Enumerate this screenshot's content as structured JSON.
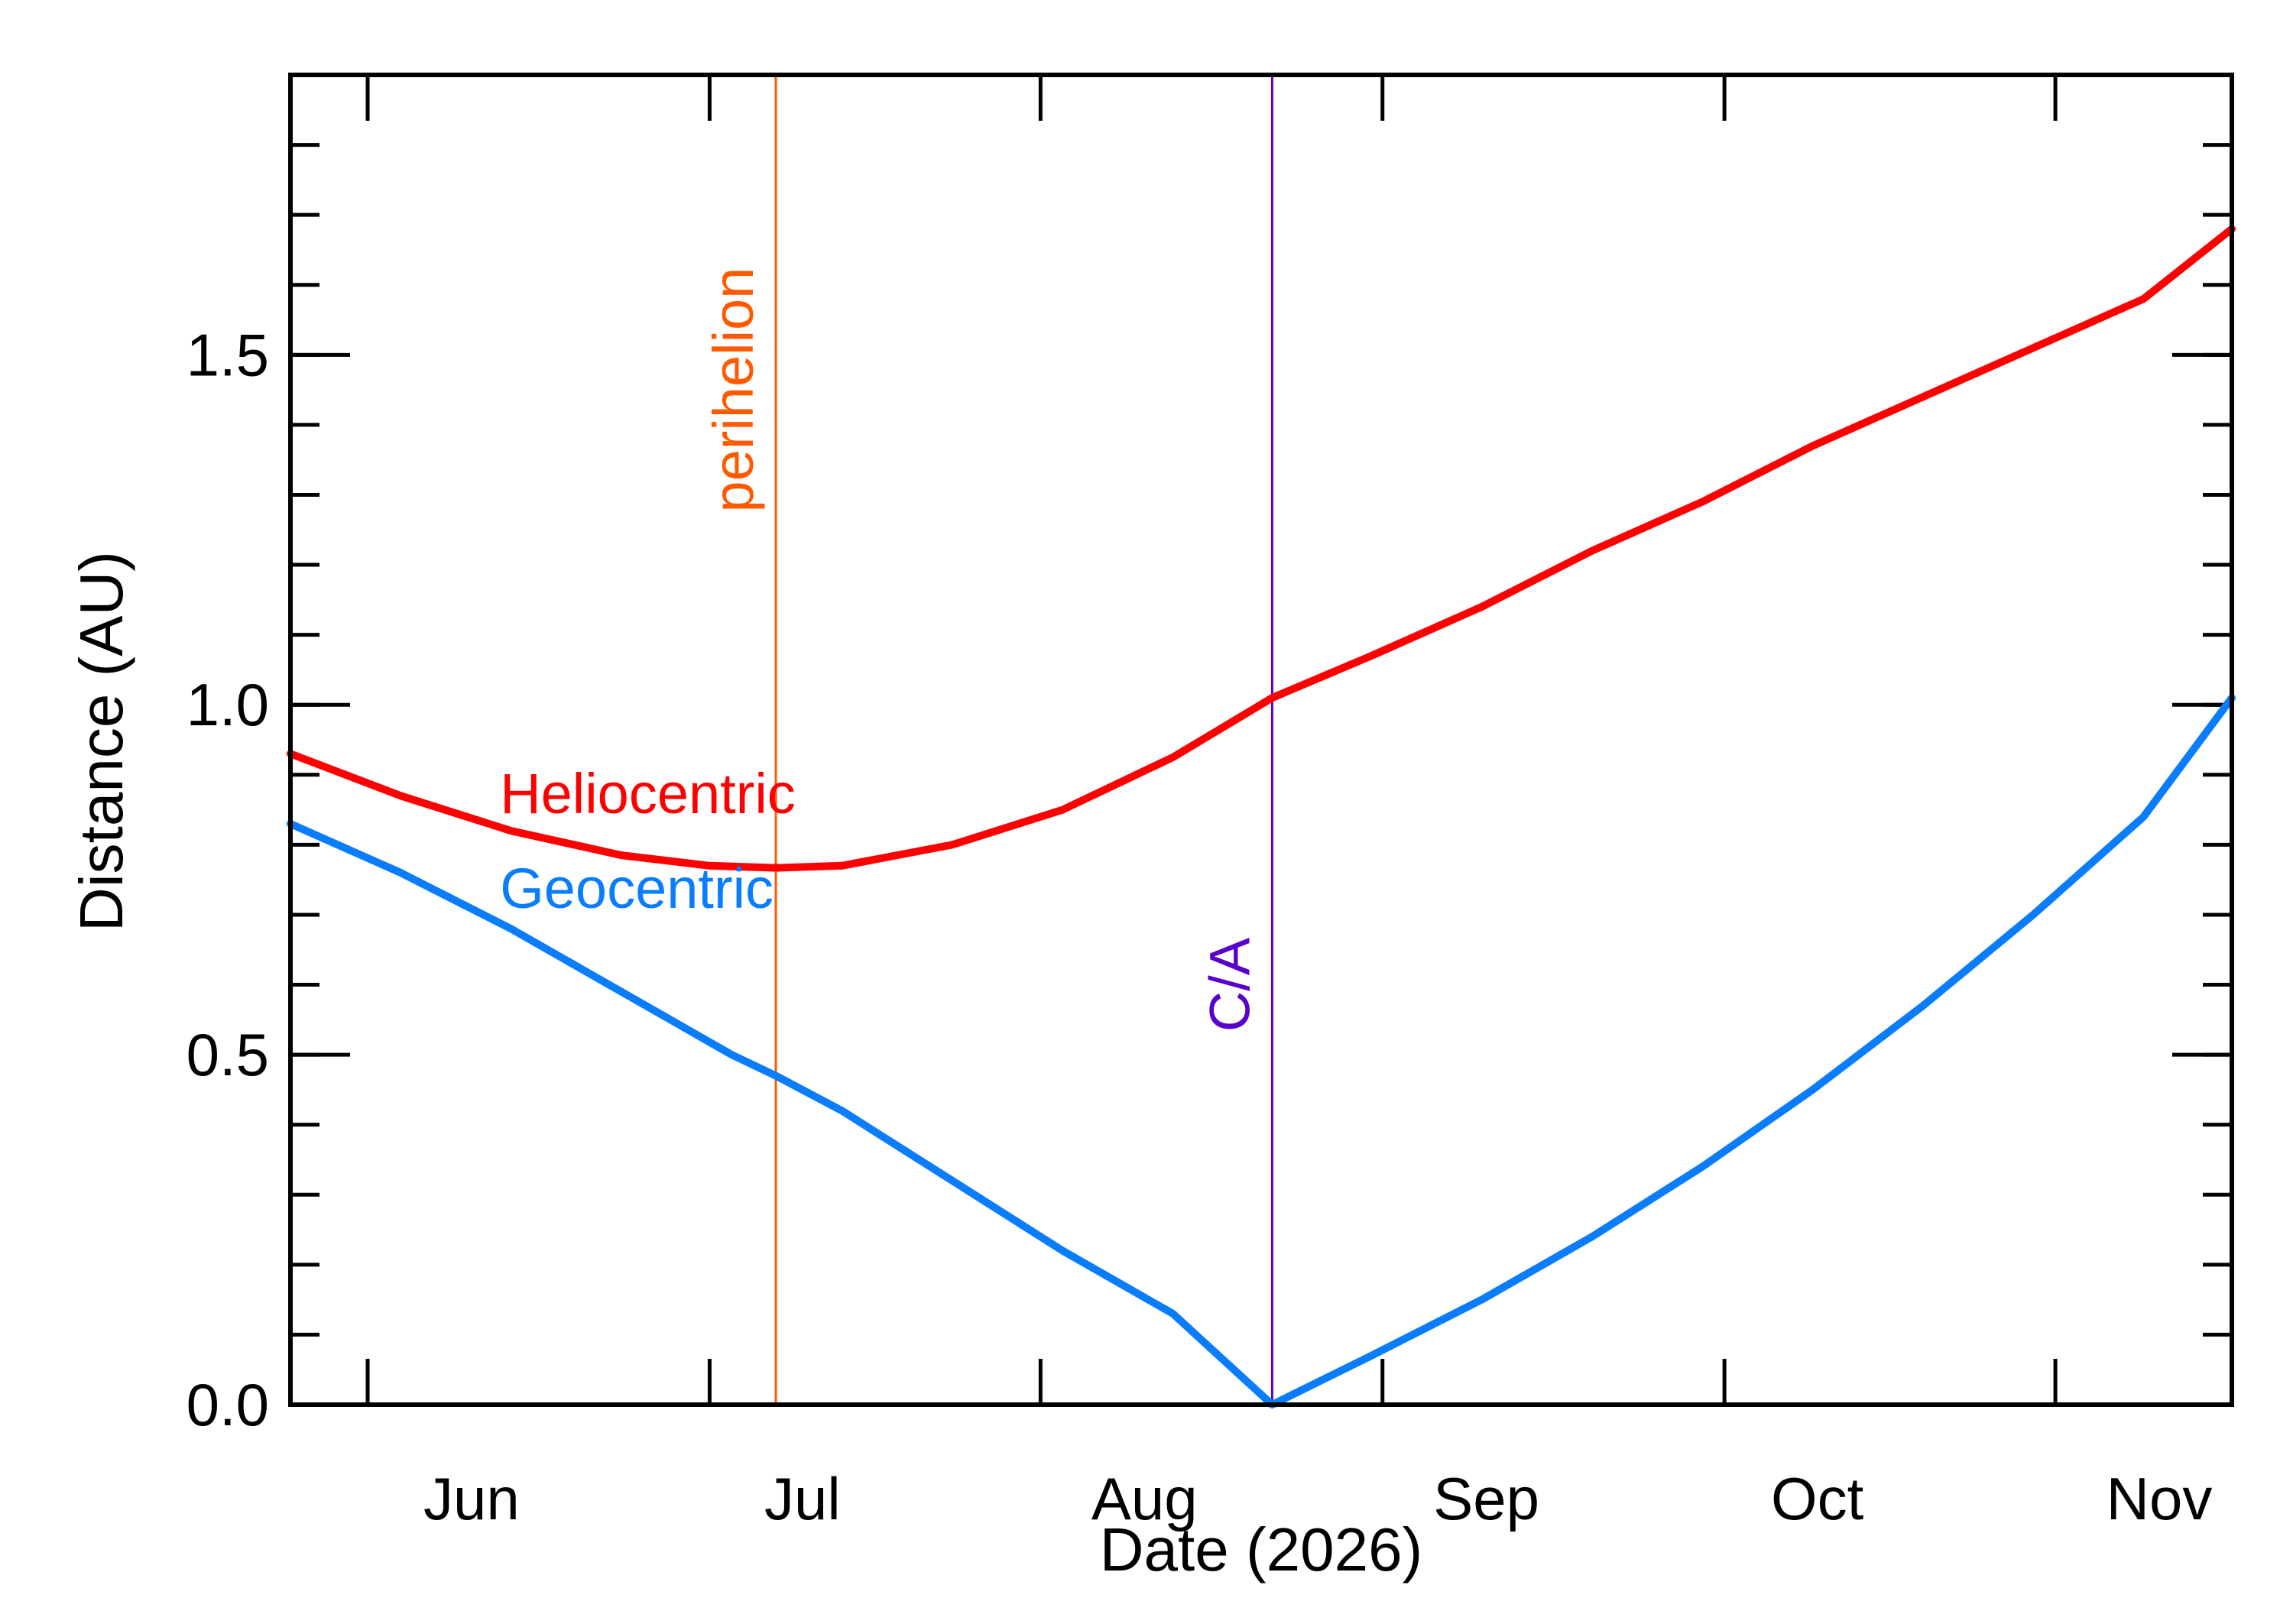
{
  "chart_data": {
    "type": "line",
    "title": "",
    "xlabel": "Date (2026)",
    "ylabel": "Distance (AU)",
    "xlim": [
      "2026-05-09",
      "2026-11-01"
    ],
    "ylim": [
      0.0,
      1.9
    ],
    "x_tick_labels": [
      {
        "label": "Jun",
        "date": "2026-06-01"
      },
      {
        "label": "Jul",
        "date": "2026-07-01"
      },
      {
        "label": "Aug",
        "date": "2026-08-01"
      },
      {
        "label": "Sep",
        "date": "2026-09-01"
      },
      {
        "label": "Oct",
        "date": "2026-10-01"
      },
      {
        "label": "Nov",
        "date": "2026-11-01"
      }
    ],
    "y_tick_labels": [
      {
        "label": "0.0",
        "value": 0.0
      },
      {
        "label": "0.5",
        "value": 0.5
      },
      {
        "label": "1.0",
        "value": 1.0
      },
      {
        "label": "1.5",
        "value": 1.5
      }
    ],
    "y_minor_step": 0.1,
    "grid": false,
    "legend": "inline labels near curves",
    "series": [
      {
        "name": "Heliocentric",
        "color": "#ff0000",
        "x": [
          "2026-05-09",
          "2026-05-19",
          "2026-05-29",
          "2026-06-08",
          "2026-06-16",
          "2026-06-22",
          "2026-06-28",
          "2026-07-08",
          "2026-07-18",
          "2026-07-28",
          "2026-08-06",
          "2026-08-15",
          "2026-08-25",
          "2026-09-04",
          "2026-09-14",
          "2026-09-24",
          "2026-10-04",
          "2026-10-14",
          "2026-10-24",
          "2026-11-01"
        ],
        "values": [
          0.93,
          0.87,
          0.82,
          0.785,
          0.77,
          0.767,
          0.77,
          0.8,
          0.85,
          0.925,
          1.01,
          1.07,
          1.14,
          1.22,
          1.29,
          1.37,
          1.44,
          1.51,
          1.58,
          1.68
        ]
      },
      {
        "name": "Geocentric",
        "color": "#0a7dff",
        "x": [
          "2026-05-09",
          "2026-05-19",
          "2026-05-29",
          "2026-06-08",
          "2026-06-18",
          "2026-06-22",
          "2026-06-28",
          "2026-07-08",
          "2026-07-18",
          "2026-07-28",
          "2026-08-06",
          "2026-08-15",
          "2026-08-25",
          "2026-09-04",
          "2026-09-14",
          "2026-09-24",
          "2026-10-04",
          "2026-10-14",
          "2026-10-24",
          "2026-11-01"
        ],
        "values": [
          0.83,
          0.76,
          0.68,
          0.59,
          0.5,
          0.47,
          0.42,
          0.32,
          0.22,
          0.13,
          0.0,
          0.07,
          0.15,
          0.24,
          0.34,
          0.45,
          0.57,
          0.7,
          0.84,
          1.01
        ]
      }
    ],
    "events": [
      {
        "label": "perihelion",
        "date": "2026-06-22",
        "color": "#ff5a00",
        "label_y": 1.45
      },
      {
        "label": "C/A",
        "date": "2026-08-06",
        "color": "#5a00cc",
        "label_y": 0.6
      }
    ],
    "series_label_positions": [
      {
        "series": 0,
        "date": "2026-05-28",
        "value": 0.845
      },
      {
        "series": 1,
        "date": "2026-05-28",
        "value": 0.71
      }
    ]
  }
}
